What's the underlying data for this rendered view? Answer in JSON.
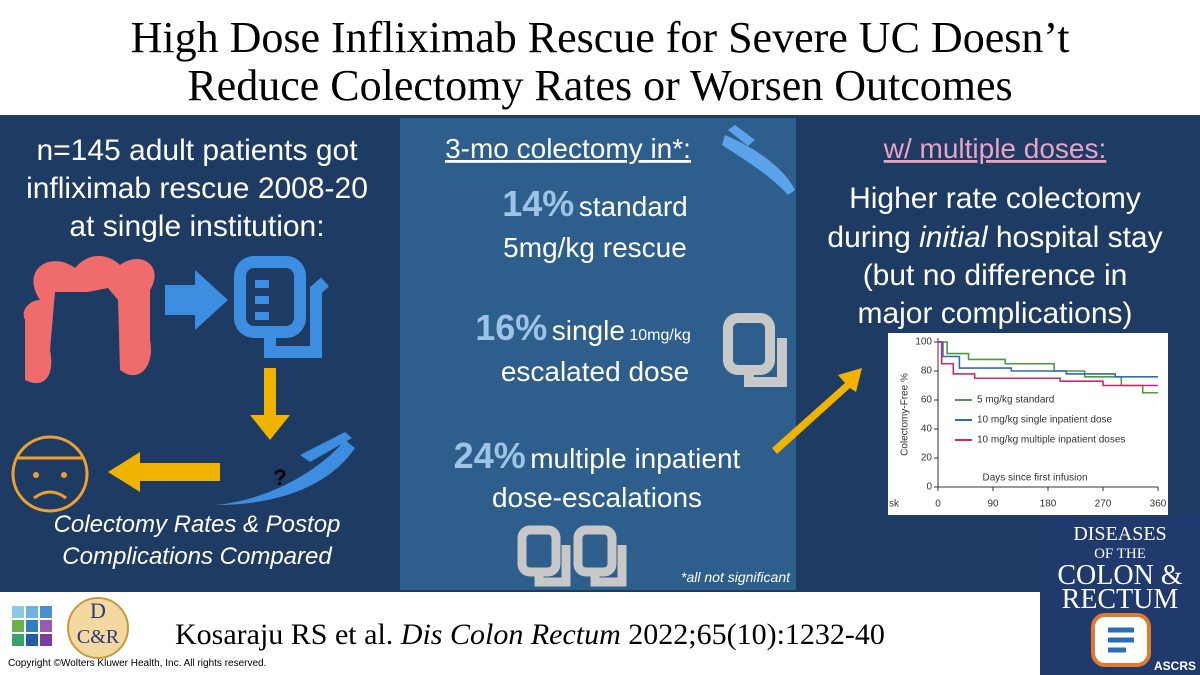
{
  "title": [
    "High Dose Infliximab Rescue for Severe UC Doesn’t",
    "Reduce Colectomy Rates or Worsen Outcomes"
  ],
  "left_panel": {
    "lines": [
      "n=145 adult patients got",
      "infliximab rescue 2008-20",
      "at single institution:"
    ],
    "question_mark": "?",
    "caption": [
      "Colectomy Rates & Postop",
      "Complications Compared"
    ]
  },
  "middle_panel": {
    "heading": "3-mo colectomy in*:",
    "results": [
      {
        "percent": "14%",
        "label": "standard",
        "detail": "5mg/kg rescue"
      },
      {
        "percent": "16%",
        "label": "single",
        "dose": "10mg/kg",
        "detail": "escalated dose"
      },
      {
        "percent": "24%",
        "label": "multiple inpatient",
        "detail": "dose-escalations"
      }
    ],
    "footnote": "*all not significant"
  },
  "right_panel": {
    "heading": "w/ multiple doses:",
    "line1": "Higher rate colectomy",
    "line2": [
      "during ",
      "initial",
      " hospital stay"
    ],
    "line3": "(but no difference in",
    "line4": "major complications)"
  },
  "km_chart": {
    "type": "line",
    "ylabel": "Colectomy-Free %",
    "xlabel": "Days since first infusion",
    "risk_fragment": "sk",
    "xlim": [
      0,
      360
    ],
    "ylim": [
      0,
      100
    ],
    "xticks": [
      0,
      90,
      180,
      270,
      360
    ],
    "yticks": [
      0,
      20,
      40,
      60,
      80,
      100
    ],
    "series": [
      {
        "name": "5 mg/kg standard",
        "color": "#4f9a3a",
        "x": [
          0,
          15,
          15,
          50,
          50,
          110,
          110,
          190,
          190,
          240,
          240,
          300,
          300,
          335,
          335,
          360
        ],
        "values": [
          100,
          100,
          92,
          92,
          88,
          88,
          85,
          85,
          80,
          80,
          76,
          76,
          70,
          70,
          65,
          65
        ]
      },
      {
        "name": "10 mg/kg single inpatient dose",
        "color": "#2c6db5",
        "x": [
          0,
          8,
          8,
          35,
          35,
          120,
          120,
          210,
          210,
          290,
          290,
          360
        ],
        "values": [
          100,
          100,
          90,
          90,
          82,
          82,
          80,
          80,
          78,
          78,
          76,
          76
        ]
      },
      {
        "name": "10 mg/kg multiple inpatient doses",
        "color": "#d1286a",
        "x": [
          0,
          6,
          6,
          25,
          25,
          60,
          60,
          200,
          200,
          270,
          270,
          360
        ],
        "values": [
          100,
          100,
          85,
          85,
          78,
          78,
          75,
          75,
          73,
          73,
          70,
          70
        ]
      }
    ]
  },
  "citation": {
    "authors": "Kosaraju RS et al. ",
    "journal": "Dis Colon Rectum",
    "details": " 2022;65(10):1232-40"
  },
  "logo": {
    "top": "D",
    "bottom": "C&R"
  },
  "copyright": "Copyright ©Wolters Kluwer Health, Inc. All rights reserved.",
  "journal_cover": {
    "lines": [
      "DISEASES",
      "OF THE",
      "COLON &",
      "RECTUM"
    ],
    "society": "ASCRS"
  }
}
